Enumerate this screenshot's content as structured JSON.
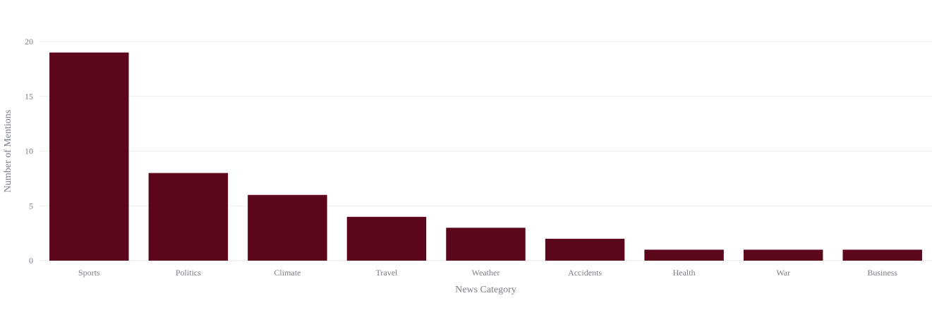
{
  "chart_data": {
    "type": "bar",
    "title": "",
    "xlabel": "News Category",
    "ylabel": "Number of Mentions",
    "categories": [
      "Sports",
      "Politics",
      "Climate",
      "Travel",
      "Weather",
      "Accidents",
      "Health",
      "War",
      "Business"
    ],
    "values": [
      19,
      8,
      6,
      4,
      3,
      2,
      1,
      1,
      1
    ],
    "ylim": [
      0,
      20
    ],
    "yticks": [
      0,
      5,
      10,
      15,
      20
    ],
    "grid": true,
    "bar_color": "#5c061c"
  }
}
